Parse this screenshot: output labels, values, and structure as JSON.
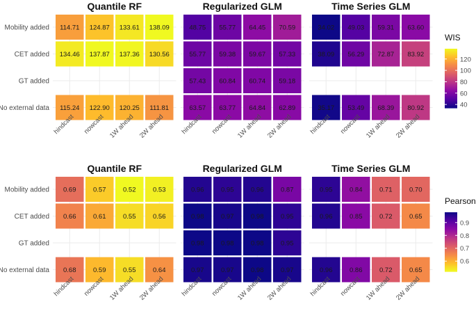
{
  "chart_data": [
    {
      "type": "heatmap",
      "metric": "WIS",
      "rows": [
        "Mobility added",
        "CET added",
        "GT added",
        "No external data"
      ],
      "columns": [
        "hindcast",
        "nowcast",
        "1W ahead",
        "2W ahead"
      ],
      "panels": [
        {
          "title": "Quantile RF",
          "values": [
            [
              114.71,
              124.87,
              133.61,
              138.09
            ],
            [
              134.46,
              137.87,
              137.36,
              130.56
            ],
            [
              null,
              null,
              null,
              null
            ],
            [
              115.24,
              122.9,
              120.25,
              111.81
            ]
          ]
        },
        {
          "title": "Regularized GLM",
          "values": [
            [
              48.75,
              55.77,
              64.45,
              70.59
            ],
            [
              55.77,
              59.38,
              59.67,
              57.33
            ],
            [
              57.43,
              60.84,
              60.74,
              59.18
            ],
            [
              63.57,
              63.77,
              64.84,
              62.89
            ]
          ]
        },
        {
          "title": "Time Series GLM",
          "values": [
            [
              34.02,
              49.03,
              59.31,
              63.6
            ],
            [
              38.09,
              56.29,
              72.87,
              83.92
            ],
            [
              null,
              null,
              null,
              null
            ],
            [
              35.17,
              53.49,
              68.39,
              80.92
            ]
          ]
        }
      ],
      "legend": {
        "title": "WIS",
        "ticks": [
          40,
          60,
          80,
          100,
          120
        ],
        "range": [
          34.02,
          138.09
        ],
        "reversed": false
      }
    },
    {
      "type": "heatmap",
      "metric": "Pearson",
      "rows": [
        "Mobility added",
        "CET added",
        "GT added",
        "No external data"
      ],
      "columns": [
        "hindcast",
        "nowcast",
        "1W ahead",
        "2W ahead"
      ],
      "panels": [
        {
          "title": "Quantile RF",
          "values": [
            [
              0.69,
              0.57,
              0.52,
              0.53
            ],
            [
              0.66,
              0.61,
              0.55,
              0.56
            ],
            [
              null,
              null,
              null,
              null
            ],
            [
              0.68,
              0.59,
              0.55,
              0.64
            ]
          ]
        },
        {
          "title": "Regularized GLM",
          "values": [
            [
              0.96,
              0.95,
              0.96,
              0.87
            ],
            [
              0.98,
              0.97,
              0.98,
              0.95
            ],
            [
              0.98,
              0.98,
              0.98,
              0.95
            ],
            [
              0.97,
              0.97,
              0.98,
              0.97
            ]
          ]
        },
        {
          "title": "Time Series GLM",
          "values": [
            [
              0.95,
              0.84,
              0.71,
              0.7
            ],
            [
              0.96,
              0.85,
              0.72,
              0.65
            ],
            [
              null,
              null,
              null,
              null
            ],
            [
              0.96,
              0.86,
              0.72,
              0.65
            ]
          ]
        }
      ],
      "legend": {
        "title": "Pearson",
        "ticks": [
          0.6,
          0.7,
          0.8,
          0.9
        ],
        "range": [
          0.52,
          0.98
        ],
        "reversed": true
      }
    }
  ]
}
